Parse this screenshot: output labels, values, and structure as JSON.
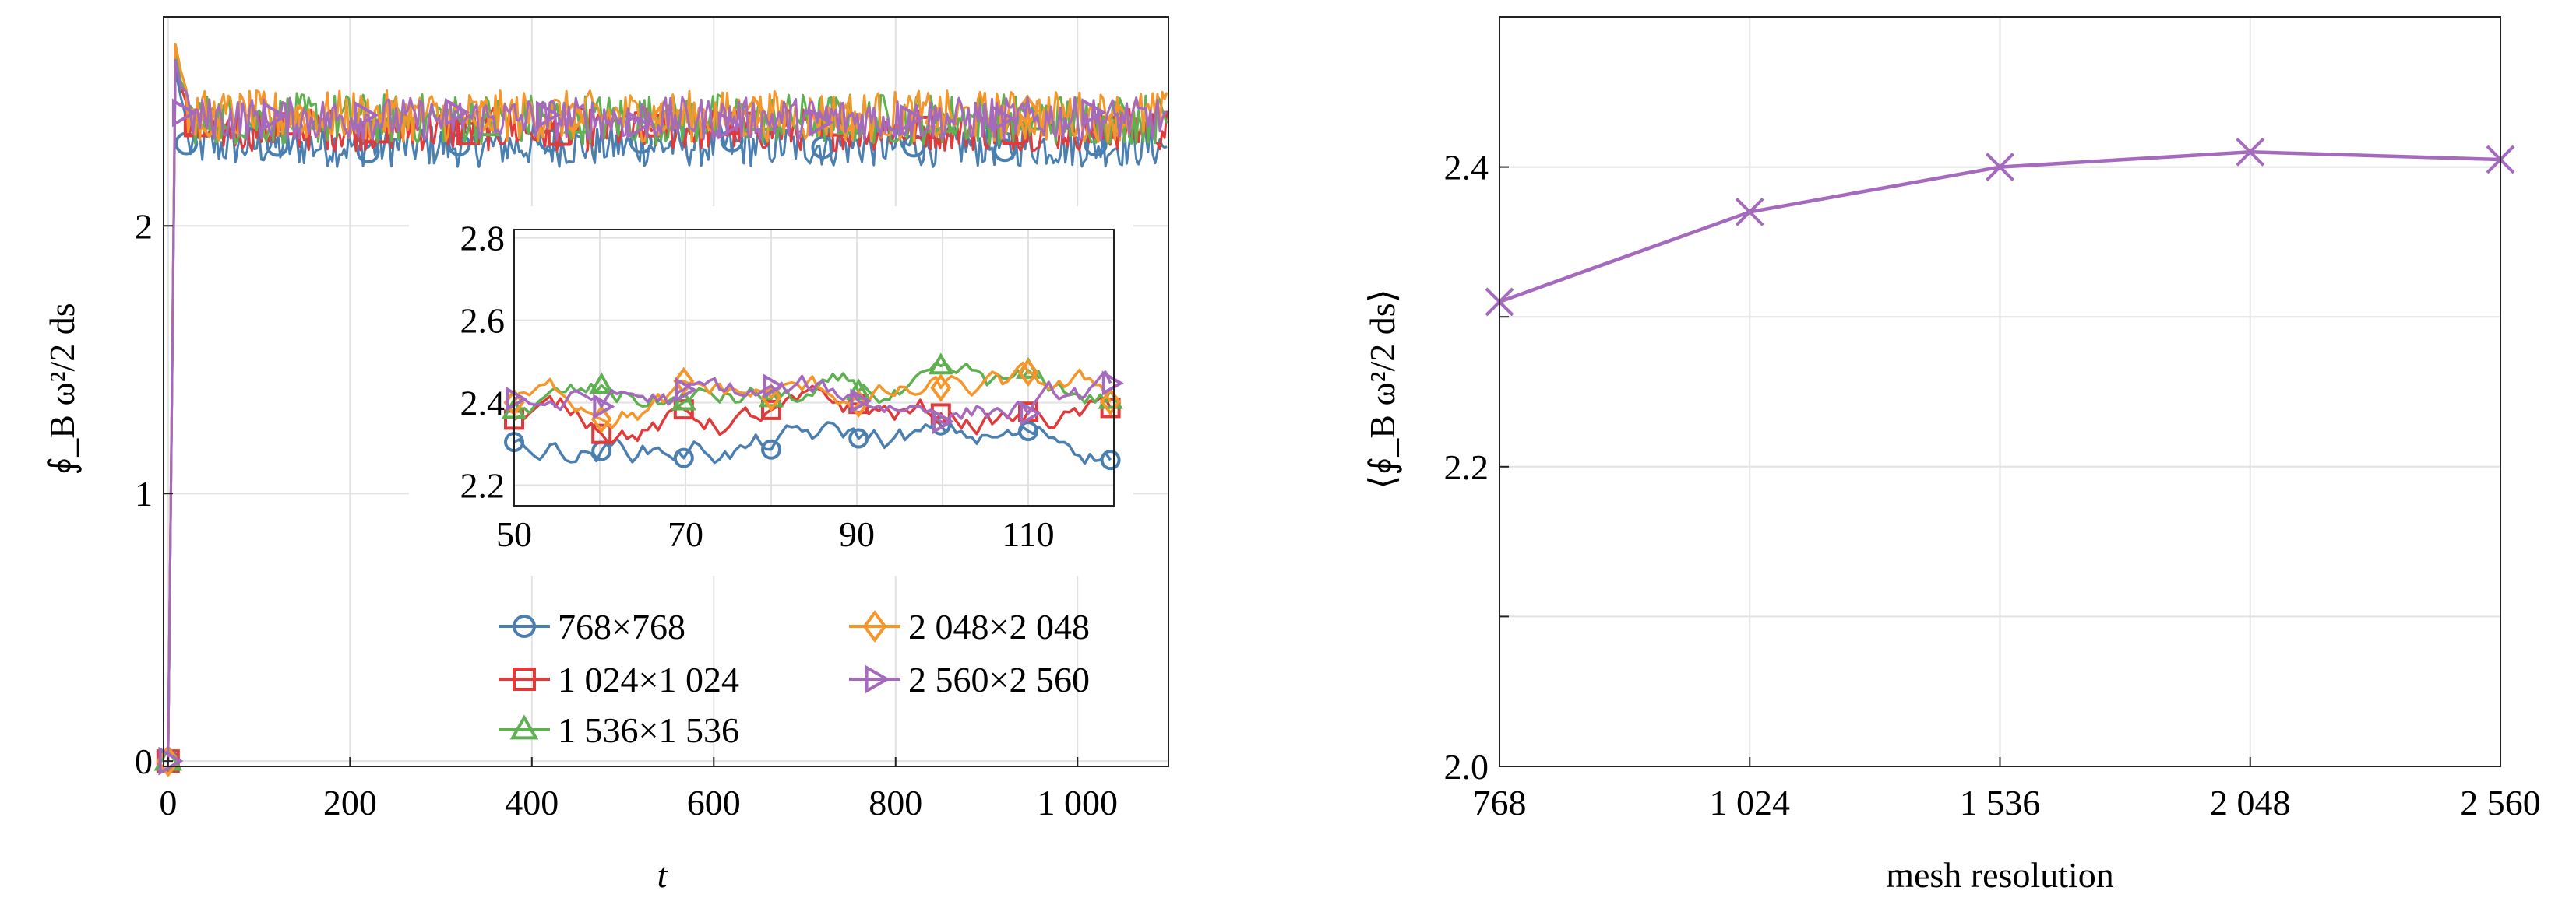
{
  "chart_data": [
    {
      "id": "left",
      "type": "line",
      "xlabel": "t",
      "ylabel": "∮_B ω²/2 ds",
      "xlim": [
        -5,
        1100
      ],
      "ylim": [
        -0.02,
        2.78
      ],
      "x_ticks": [
        0,
        200,
        400,
        600,
        800,
        1000
      ],
      "x_tick_labels": [
        "0",
        "200",
        "400",
        "600",
        "800",
        "1 000"
      ],
      "y_ticks": [
        0,
        1,
        2
      ],
      "y_tick_labels": [
        "0",
        "1",
        "2"
      ],
      "grid": true,
      "legend": "bottom-right, two columns",
      "series": [
        {
          "name": "768×768",
          "color": "#4a7fb0",
          "marker": "circle",
          "mean": 2.3,
          "amp": 0.05,
          "peak": 2.58
        },
        {
          "name": "1 024×1 024",
          "color": "#e03a3a",
          "marker": "square",
          "mean": 2.36,
          "amp": 0.05,
          "peak": 2.62
        },
        {
          "name": "1 536×1 536",
          "color": "#5fb050",
          "marker": "triangle-up",
          "mean": 2.4,
          "amp": 0.06,
          "peak": 2.64
        },
        {
          "name": "2 048×2 048",
          "color": "#f5962a",
          "marker": "diamond",
          "mean": 2.41,
          "amp": 0.06,
          "peak": 2.68
        },
        {
          "name": "2 560×2 560",
          "color": "#a569bd",
          "marker": "triangle-right",
          "mean": 2.4,
          "amp": 0.05,
          "peak": 2.62
        }
      ],
      "inset": {
        "xlim": [
          50,
          120
        ],
        "ylim": [
          2.15,
          2.82
        ],
        "x_ticks": [
          50,
          70,
          90,
          110
        ],
        "x_tick_labels": [
          "50",
          "70",
          "90",
          "110"
        ],
        "y_ticks": [
          2.2,
          2.4,
          2.6,
          2.8
        ],
        "y_tick_labels": [
          "2.2",
          "2.4",
          "2.6",
          "2.8"
        ]
      }
    },
    {
      "id": "right",
      "type": "line",
      "xlabel": "mesh resolution",
      "ylabel": "⟨∮_B ω²/2 ds⟩",
      "categories": [
        "768",
        "1 024",
        "1 536",
        "2 048",
        "2 560"
      ],
      "values": [
        2.31,
        2.37,
        2.4,
        2.41,
        2.405
      ],
      "ylim": [
        2.0,
        2.5
      ],
      "y_ticks": [
        2.0,
        2.1,
        2.2,
        2.3,
        2.4
      ],
      "y_tick_labels": [
        "2.0",
        "",
        "2.2",
        "",
        "2.4"
      ],
      "grid": true,
      "series": [
        {
          "color": "#a569bd",
          "marker": "x"
        }
      ]
    }
  ]
}
